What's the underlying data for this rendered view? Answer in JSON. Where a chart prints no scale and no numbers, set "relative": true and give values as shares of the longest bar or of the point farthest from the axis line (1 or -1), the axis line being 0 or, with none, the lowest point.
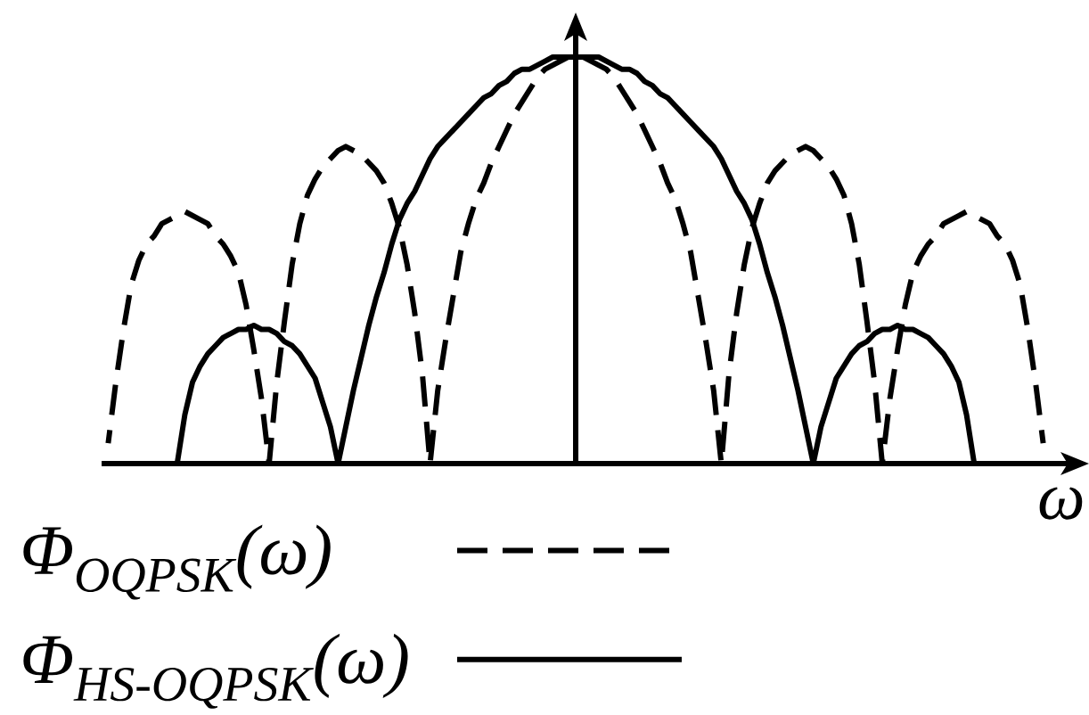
{
  "chart_data": {
    "type": "line",
    "relative": true,
    "xlabel": "ω",
    "legend": "bottom left",
    "categories": [
      null,
      null,
      null,
      null,
      null,
      null,
      null,
      null,
      null,
      null,
      null,
      null,
      null,
      null,
      null,
      null,
      null,
      null,
      null,
      null,
      null,
      null,
      null,
      null,
      null,
      null,
      null,
      null,
      null,
      null,
      null,
      null,
      null,
      null,
      null,
      null,
      null,
      null,
      null,
      null,
      null,
      null,
      null,
      null,
      null,
      null,
      null,
      null,
      null,
      null,
      null,
      null,
      null,
      null,
      null,
      null,
      null,
      null,
      null,
      null,
      null,
      null,
      null,
      null,
      null,
      null,
      null,
      null,
      null,
      null,
      null,
      null,
      null,
      null,
      null,
      null,
      null,
      null,
      null,
      null,
      null,
      null,
      null,
      null,
      null,
      null,
      null,
      null,
      null,
      null,
      null,
      null,
      null,
      null,
      null,
      null,
      null,
      null,
      null,
      null,
      null,
      null,
      null,
      null,
      null,
      null,
      null,
      null,
      null,
      null,
      null,
      null,
      null,
      null,
      null,
      null,
      null,
      null,
      null,
      null,
      null,
      null,
      null
    ],
    "series": [
      {
        "name": "Φ$_{OQPSK}$(ω)",
        "color": "#000000",
        "line_style": "dashed",
        "values": [
          0.05,
          0.2,
          0.33,
          0.44,
          0.5,
          0.54,
          0.56,
          0.59,
          0.6,
          0.61,
          0.62,
          0.61,
          0.6,
          0.59,
          0.56,
          0.54,
          0.51,
          0.47,
          0.39,
          0.28,
          0.16,
          0,
          0.2,
          0.35,
          0.49,
          0.59,
          0.66,
          0.7,
          0.73,
          0.75,
          0.77,
          0.78,
          0.77,
          0.76,
          0.74,
          0.72,
          0.69,
          0.64,
          0.58,
          0.49,
          0.37,
          0.22,
          0,
          0.18,
          0.3,
          0.41,
          0.52,
          0.59,
          0.65,
          0.69,
          0.74,
          0.78,
          0.82,
          0.86,
          0.89,
          0.92,
          0.95,
          0.97,
          0.98,
          0.99,
          1,
          1,
          1,
          0.99,
          0.98,
          0.97,
          0.95,
          0.92,
          0.89,
          0.86,
          0.82,
          0.78,
          0.74,
          0.69,
          0.65,
          0.59,
          0.52,
          0.41,
          0.3,
          0.18,
          0,
          0.22,
          0.37,
          0.49,
          0.58,
          0.64,
          0.69,
          0.72,
          0.74,
          0.76,
          0.77,
          0.78,
          0.77,
          0.75,
          0.73,
          0.7,
          0.66,
          0.59,
          0.49,
          0.35,
          0.2,
          0,
          0.16,
          0.28,
          0.39,
          0.47,
          0.51,
          0.54,
          0.56,
          0.59,
          0.6,
          0.61,
          0.62,
          0.61,
          0.6,
          0.59,
          0.56,
          0.54,
          0.5,
          0.44,
          0.33,
          0.2,
          0.05
        ]
      },
      {
        "name": "Φ$_{HS-OQPSK}$(ω)",
        "color": "#000000",
        "line_style": "solid",
        "values": [
          null,
          null,
          null,
          null,
          null,
          null,
          null,
          null,
          null,
          0,
          0.12,
          0.2,
          0.24,
          0.27,
          0.29,
          0.31,
          0.32,
          0.33,
          0.33,
          0.34,
          0.33,
          0.33,
          0.32,
          0.3,
          0.29,
          0.27,
          0.24,
          0.21,
          0.15,
          0.09,
          0,
          0.09,
          0.18,
          0.26,
          0.34,
          0.41,
          0.47,
          0.54,
          0.6,
          0.64,
          0.67,
          0.71,
          0.75,
          0.78,
          0.8,
          0.82,
          0.84,
          0.86,
          0.88,
          0.9,
          0.91,
          0.93,
          0.94,
          0.96,
          0.97,
          0.97,
          0.98,
          0.99,
          1,
          1,
          1,
          1,
          1,
          1,
          1,
          0.99,
          0.98,
          0.97,
          0.97,
          0.96,
          0.94,
          0.93,
          0.91,
          0.9,
          0.88,
          0.86,
          0.84,
          0.82,
          0.8,
          0.78,
          0.75,
          0.71,
          0.67,
          0.64,
          0.6,
          0.54,
          0.47,
          0.41,
          0.34,
          0.26,
          0.18,
          0.09,
          0,
          0.09,
          0.15,
          0.21,
          0.24,
          0.27,
          0.29,
          0.3,
          0.32,
          0.33,
          0.33,
          0.34,
          0.33,
          0.33,
          0.32,
          0.31,
          0.29,
          0.27,
          0.24,
          0.2,
          0.12,
          0,
          null,
          null,
          null,
          null,
          null,
          null,
          null,
          null,
          null
        ]
      }
    ]
  }
}
